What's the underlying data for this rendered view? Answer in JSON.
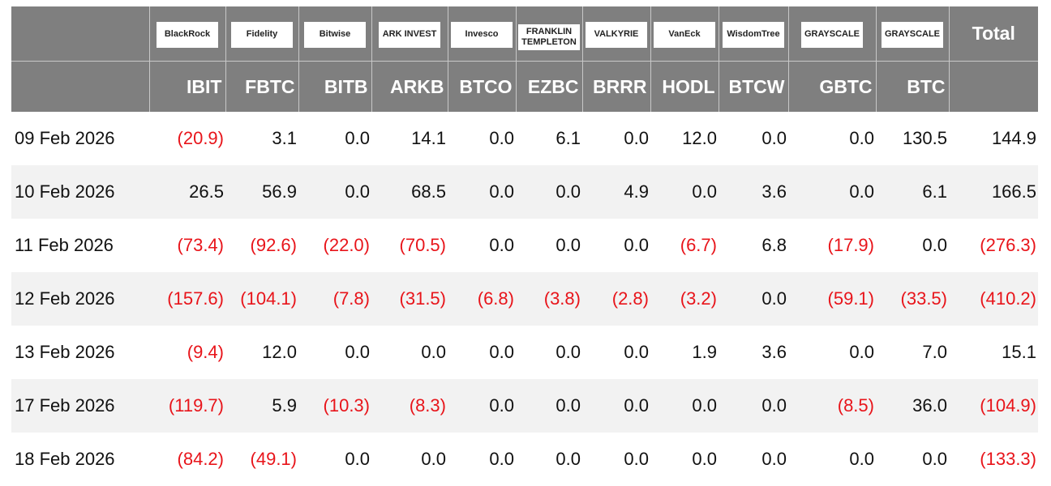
{
  "table": {
    "logos": [
      "BlackRock",
      "Fidelity",
      "Bitwise",
      "ARK INVEST",
      "Invesco",
      "FRANKLIN TEMPLETON",
      "VALKYRIE",
      "VanEck",
      "WisdomTree",
      "GRAYSCALE",
      "GRAYSCALE"
    ],
    "total_header": "Total",
    "tickers": [
      "IBIT",
      "FBTC",
      "BITB",
      "ARKB",
      "BTCO",
      "EZBC",
      "BRRR",
      "HODL",
      "BTCW",
      "GBTC",
      "BTC"
    ],
    "rows": [
      [
        "09 Feb 2026",
        "(20.9)",
        "3.1",
        "0.0",
        "14.1",
        "0.0",
        "6.1",
        "0.0",
        "12.0",
        "0.0",
        "0.0",
        "130.5",
        "144.9"
      ],
      [
        "10 Feb 2026",
        "26.5",
        "56.9",
        "0.0",
        "68.5",
        "0.0",
        "0.0",
        "4.9",
        "0.0",
        "3.6",
        "0.0",
        "6.1",
        "166.5"
      ],
      [
        "11 Feb 2026",
        "(73.4)",
        "(92.6)",
        "(22.0)",
        "(70.5)",
        "0.0",
        "0.0",
        "0.0",
        "(6.7)",
        "6.8",
        "(17.9)",
        "0.0",
        "(276.3)"
      ],
      [
        "12 Feb 2026",
        "(157.6)",
        "(104.1)",
        "(7.8)",
        "(31.5)",
        "(6.8)",
        "(3.8)",
        "(2.8)",
        "(3.2)",
        "0.0",
        "(59.1)",
        "(33.5)",
        "(410.2)"
      ],
      [
        "13 Feb 2026",
        "(9.4)",
        "12.0",
        "0.0",
        "0.0",
        "0.0",
        "0.0",
        "0.0",
        "1.9",
        "3.6",
        "0.0",
        "7.0",
        "15.1"
      ],
      [
        "17 Feb 2026",
        "(119.7)",
        "5.9",
        "(10.3)",
        "(8.3)",
        "0.0",
        "0.0",
        "0.0",
        "0.0",
        "0.0",
        "(8.5)",
        "36.0",
        "(104.9)"
      ],
      [
        "18 Feb 2026",
        "(84.2)",
        "(49.1)",
        "0.0",
        "0.0",
        "0.0",
        "0.0",
        "0.0",
        "0.0",
        "0.0",
        "0.0",
        "0.0",
        "(133.3)"
      ]
    ]
  }
}
